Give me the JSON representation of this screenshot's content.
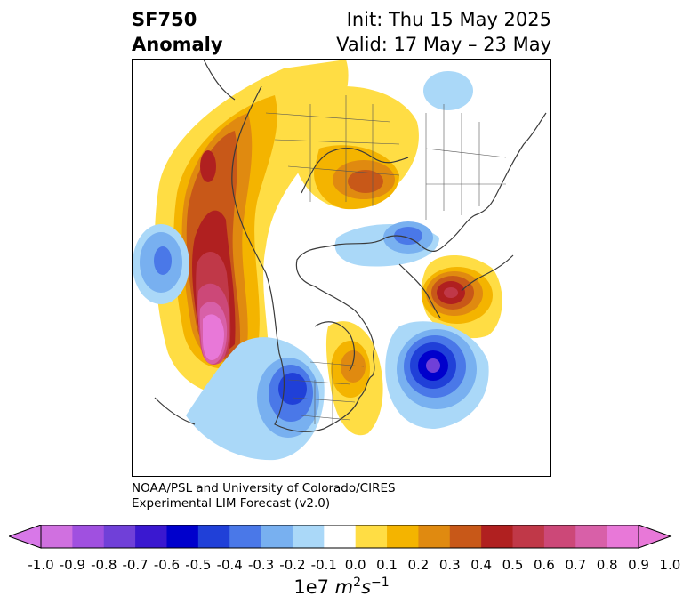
{
  "header": {
    "left_line1": "SF750",
    "left_line2": "Anomaly",
    "right_line1": "Init: Thu 15 May 2025",
    "right_line2": "Valid: 17 May – 23 May"
  },
  "credit": {
    "line1": "NOAA/PSL and University of Colorado/CIRES",
    "line2": "Experimental LIM Forecast (v2.0)"
  },
  "colorbar": {
    "ticks": [
      "-1.0",
      "-0.9",
      "-0.8",
      "-0.7",
      "-0.6",
      "-0.5",
      "-0.4",
      "-0.3",
      "-0.2",
      "-0.1",
      "0.0",
      "0.1",
      "0.2",
      "0.3",
      "0.4",
      "0.5",
      "0.6",
      "0.7",
      "0.8",
      "0.9",
      "1.0"
    ],
    "colors": [
      "#d070e0",
      "#a050e0",
      "#7040d8",
      "#3a18d0",
      "#0000cc",
      "#2040d8",
      "#4a78e8",
      "#78b0f0",
      "#aad8f8",
      "#ffffff",
      "#ffdd44",
      "#f4b400",
      "#e08a10",
      "#c85818",
      "#b02020",
      "#c03848",
      "#cc4878",
      "#d860a8",
      "#e878d8"
    ],
    "extend_low_color": "#d878e8",
    "extend_high_color": "#e878d8",
    "units_base": "1e7",
    "units_m": "m",
    "units_m_exp": "2",
    "units_s": "s",
    "units_s_exp": "−1"
  }
}
